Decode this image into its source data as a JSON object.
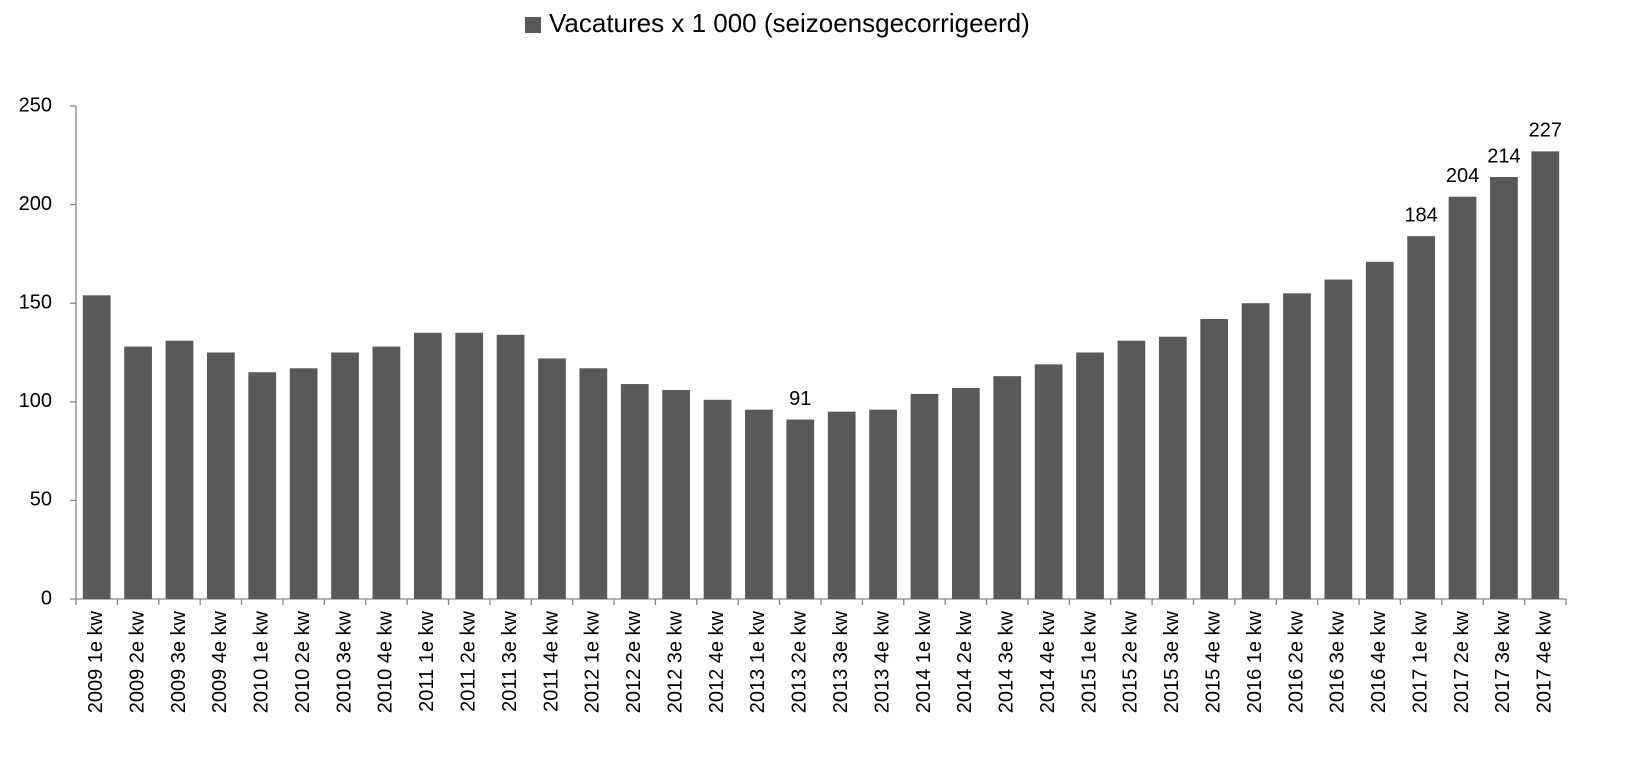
{
  "chart_data": {
    "type": "bar",
    "categories": [
      "2009 1e kw",
      "2009 2e kw",
      "2009 3e kw",
      "2009 4e kw",
      "2010 1e kw",
      "2010 2e kw",
      "2010 3e kw",
      "2010 4e kw",
      "2011 1e kw",
      "2011 2e kw",
      "2011 3e kw",
      "2011 4e kw",
      "2012 1e kw",
      "2012 2e kw",
      "2012 3e kw",
      "2012 4e kw",
      "2013 1e kw",
      "2013 2e kw",
      "2013 3e kw",
      "2013 4e kw",
      "2014 1e kw",
      "2014 2e kw",
      "2014 3e kw",
      "2014 4e kw",
      "2015 1e kw",
      "2015 2e kw",
      "2015 3e kw",
      "2015 4e kw",
      "2016 1e kw",
      "2016 2e kw",
      "2016 3e kw",
      "2016 4e kw",
      "2017 1e kw",
      "2017 2e kw",
      "2017 3e kw",
      "2017 4e kw"
    ],
    "series": [
      {
        "name": "Vacatures x 1 000 (seizoensgecorrigeerd)",
        "color": "#595959",
        "values": [
          154,
          128,
          131,
          125,
          115,
          117,
          125,
          128,
          135,
          135,
          134,
          122,
          117,
          109,
          106,
          101,
          96,
          91,
          95,
          96,
          104,
          107,
          113,
          119,
          125,
          131,
          133,
          142,
          150,
          155,
          162,
          171,
          184,
          204,
          214,
          227
        ],
        "value_labels": [
          null,
          null,
          null,
          null,
          null,
          null,
          null,
          null,
          null,
          null,
          null,
          null,
          null,
          null,
          null,
          null,
          null,
          "91",
          null,
          null,
          null,
          null,
          null,
          null,
          null,
          null,
          null,
          null,
          null,
          null,
          null,
          null,
          "184",
          "204",
          "214",
          "227"
        ]
      }
    ],
    "ylim": [
      0,
      250
    ],
    "yticks": [
      0,
      50,
      100,
      150,
      200,
      250
    ],
    "legend": "top"
  }
}
